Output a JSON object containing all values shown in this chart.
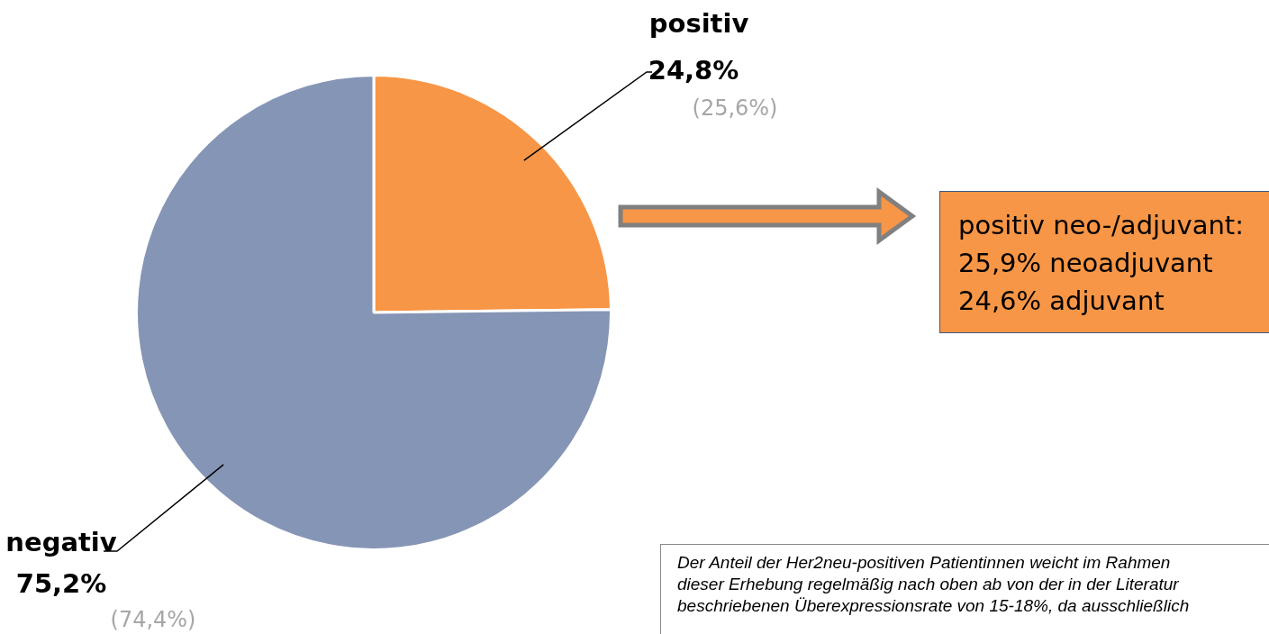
{
  "chart_data": {
    "type": "pie",
    "categories": [
      "positiv",
      "negativ"
    ],
    "values": [
      24.8,
      75.2
    ],
    "colors": [
      "#f79646",
      "#8595b5"
    ],
    "value_labels": [
      "24,8%",
      "75,2%"
    ],
    "legend": false,
    "annotations": [
      "(25,6%)",
      "(74,4%)",
      "positiv neo-/adjuvant:\n25,9% neoadjuvant\n24,6% adjuvant",
      "Der Anteil der Her2neu-positiven Patientinnen weicht im Rahmen\ndieser Erhebung regelmäßig nach oben ab von der in der Literatur\nbeschriebenen Überexpressionsrate von 15-18%, da ausschließlich"
    ]
  }
}
